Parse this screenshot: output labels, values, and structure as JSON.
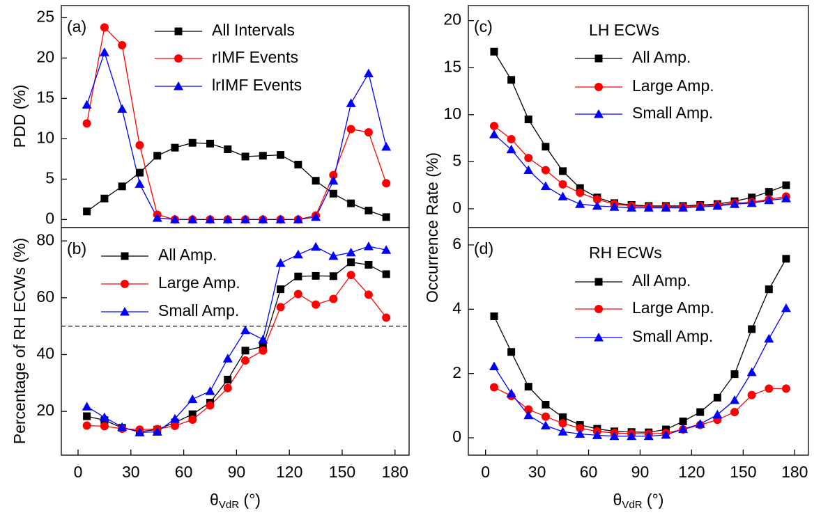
{
  "chart_data": [
    {
      "type": "line",
      "panel_label": "(a)",
      "y_label": "PDD (%)",
      "x": [
        5,
        15,
        25,
        35,
        45,
        55,
        65,
        75,
        85,
        95,
        105,
        115,
        125,
        135,
        145,
        155,
        165,
        175
      ],
      "xlim": [
        -9.5,
        188
      ],
      "ylim": [
        -1,
        26.5
      ],
      "yticks": [
        0,
        5,
        10,
        15,
        20,
        25
      ],
      "series": [
        {
          "name": "All Intervals",
          "color": "#000000",
          "marker": "square",
          "values": [
            1.0,
            2.6,
            4.1,
            5.8,
            7.9,
            8.9,
            9.5,
            9.4,
            8.7,
            7.8,
            7.9,
            8.0,
            6.8,
            4.8,
            3.2,
            2.0,
            1.1,
            0.3
          ]
        },
        {
          "name": "rIMF Events",
          "color": "#ff0000",
          "marker": "circle",
          "values": [
            11.9,
            23.8,
            21.6,
            9.2,
            0.6,
            0,
            0,
            0,
            0,
            0,
            0,
            0,
            0,
            0.5,
            5.5,
            11.2,
            10.8,
            4.5
          ]
        },
        {
          "name": "lrIMF Events",
          "color": "#0000ff",
          "marker": "triangle",
          "values": [
            14.2,
            20.7,
            13.7,
            4.4,
            0.2,
            0,
            0,
            0,
            0,
            0,
            0,
            0,
            0,
            0.3,
            4.8,
            14.4,
            18.1,
            9.0
          ]
        }
      ]
    },
    {
      "type": "line",
      "panel_label": "(b)",
      "y_label": "Percentage of RH ECWs (%)",
      "x_label": {
        "symbol": "θ",
        "subscript": "VdR",
        "unit": " (°)"
      },
      "x": [
        5,
        15,
        25,
        35,
        45,
        55,
        65,
        75,
        85,
        95,
        105,
        115,
        125,
        135,
        145,
        155,
        165,
        175
      ],
      "xlim": [
        -9.5,
        188
      ],
      "xticks": [
        0,
        30,
        60,
        90,
        120,
        150,
        180
      ],
      "ylim": [
        4.6,
        84.7
      ],
      "yticks": [
        20,
        40,
        60,
        80
      ],
      "hline": 50,
      "series": [
        {
          "name": "All Amp.",
          "color": "#000000",
          "marker": "square",
          "values": [
            18.3,
            16.9,
            14.2,
            12.9,
            13.6,
            16.1,
            19.0,
            23.1,
            31.2,
            41.4,
            42.8,
            63.0,
            67.5,
            67.7,
            67.6,
            72.5,
            71.6,
            68.3
          ]
        },
        {
          "name": "Large Amp.",
          "color": "#ff0000",
          "marker": "circle",
          "values": [
            15.0,
            14.8,
            13.9,
            13.6,
            13.8,
            14.9,
            17.1,
            22.1,
            28.2,
            37.9,
            41.4,
            56.7,
            61.3,
            57.6,
            59.6,
            68.0,
            61.1,
            53.0
          ]
        },
        {
          "name": "Small Amp.",
          "color": "#0000ff",
          "marker": "triangle",
          "values": [
            21.7,
            17.9,
            14.5,
            12.6,
            12.8,
            17.4,
            24.3,
            27.1,
            38.6,
            48.5,
            45.3,
            72.2,
            75.2,
            77.9,
            74.7,
            75.9,
            78.1,
            76.8
          ]
        }
      ]
    },
    {
      "type": "line",
      "panel_label": "(c)",
      "legend_title": "LH ECWs",
      "y_label": "Occurrence Rate (%)",
      "x": [
        5,
        15,
        25,
        35,
        45,
        55,
        65,
        75,
        85,
        95,
        105,
        115,
        125,
        135,
        145,
        155,
        165,
        175
      ],
      "xlim": [
        -10,
        188
      ],
      "ylim": [
        -2,
        21.6
      ],
      "yticks": [
        0,
        5,
        10,
        15,
        20
      ],
      "series": [
        {
          "name": "All Amp.",
          "color": "#000000",
          "marker": "square",
          "values": [
            16.7,
            13.7,
            9.5,
            6.6,
            4.0,
            2.2,
            1.2,
            0.6,
            0.4,
            0.3,
            0.3,
            0.3,
            0.4,
            0.5,
            0.8,
            1.2,
            1.8,
            2.5
          ]
        },
        {
          "name": "Large Amp.",
          "color": "#ff0000",
          "marker": "circle",
          "values": [
            8.8,
            7.4,
            5.4,
            4.1,
            2.6,
            1.7,
            1.0,
            0.5,
            0.3,
            0.2,
            0.2,
            0.2,
            0.3,
            0.4,
            0.6,
            0.7,
            1.0,
            1.3
          ]
        },
        {
          "name": "Small Amp.",
          "color": "#0000ff",
          "marker": "triangle",
          "values": [
            7.9,
            6.3,
            4.1,
            2.4,
            1.3,
            0.5,
            0.3,
            0.2,
            0.1,
            0.1,
            0.1,
            0.1,
            0.2,
            0.3,
            0.5,
            0.6,
            0.9,
            1.1
          ]
        }
      ]
    },
    {
      "type": "line",
      "panel_label": "(d)",
      "legend_title": "RH ECWs",
      "x_label": {
        "symbol": "θ",
        "subscript": "VdR",
        "unit": " (°)"
      },
      "x": [
        5,
        15,
        25,
        35,
        45,
        55,
        65,
        75,
        85,
        95,
        105,
        115,
        125,
        135,
        145,
        155,
        165,
        175
      ],
      "xlim": [
        -10,
        188
      ],
      "xticks": [
        0,
        30,
        60,
        90,
        120,
        150,
        180
      ],
      "ylim": [
        -0.54,
        6.54
      ],
      "yticks": [
        0,
        2,
        4,
        6
      ],
      "series": [
        {
          "name": "All Amp.",
          "color": "#000000",
          "marker": "square",
          "values": [
            3.78,
            2.67,
            1.59,
            1.03,
            0.64,
            0.4,
            0.28,
            0.2,
            0.18,
            0.17,
            0.26,
            0.51,
            0.8,
            1.25,
            1.98,
            3.38,
            4.62,
            5.57
          ]
        },
        {
          "name": "Large Amp.",
          "color": "#ff0000",
          "marker": "circle",
          "values": [
            1.57,
            1.3,
            0.88,
            0.66,
            0.45,
            0.3,
            0.2,
            0.15,
            0.13,
            0.12,
            0.15,
            0.26,
            0.4,
            0.56,
            0.8,
            1.33,
            1.53,
            1.53
          ]
        },
        {
          "name": "Small Amp.",
          "color": "#0000ff",
          "marker": "triangle",
          "values": [
            2.22,
            1.38,
            0.7,
            0.38,
            0.19,
            0.12,
            0.08,
            0.05,
            0.05,
            0.05,
            0.09,
            0.27,
            0.43,
            0.72,
            1.17,
            2.04,
            3.08,
            4.03
          ]
        }
      ]
    }
  ]
}
